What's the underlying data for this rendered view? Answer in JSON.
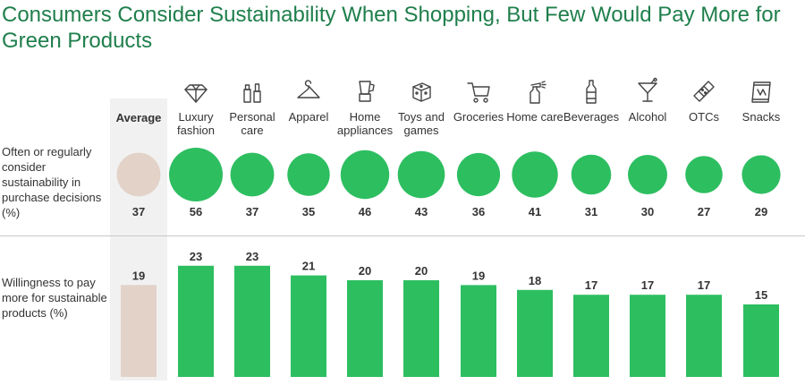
{
  "title": "Consumers Consider Sustainability When Shopping, But Few Would Pay More for Green Products",
  "rows": {
    "consider_label": "Often or regularly consider sustainability in purchase decisions (%)",
    "pay_label": "Willingness to pay more for sustainable products (%)"
  },
  "average_label": "Average",
  "colors": {
    "accent": "#2dbe60",
    "average": "#e2d2c7",
    "title": "#1f7f4c",
    "band": "#f1f1f1"
  },
  "categories": [
    {
      "label": "Luxury fashion",
      "icon": "diamond-icon"
    },
    {
      "label": "Personal care",
      "icon": "cosmetics-icon"
    },
    {
      "label": "Apparel",
      "icon": "hanger-icon"
    },
    {
      "label": "Home appliances",
      "icon": "blender-icon"
    },
    {
      "label": "Toys and games",
      "icon": "dice-icon"
    },
    {
      "label": "Groceries",
      "icon": "shopping-cart-icon"
    },
    {
      "label": "Home care",
      "icon": "spray-bottle-icon"
    },
    {
      "label": "Beverages",
      "icon": "bottle-icon"
    },
    {
      "label": "Alcohol",
      "icon": "cocktail-glass-icon"
    },
    {
      "label": "OTCs",
      "icon": "bandage-icon"
    },
    {
      "label": "Snacks",
      "icon": "snack-bag-icon"
    }
  ],
  "chart_data": [
    {
      "type": "bubble",
      "categories": [
        "Average",
        "Luxury fashion",
        "Personal care",
        "Apparel",
        "Home appliances",
        "Toys and games",
        "Groceries",
        "Home care",
        "Beverages",
        "Alcohol",
        "OTCs",
        "Snacks"
      ],
      "values": [
        37,
        56,
        37,
        35,
        46,
        43,
        36,
        41,
        31,
        30,
        27,
        29
      ]
    },
    {
      "type": "bar",
      "categories": [
        "Average",
        "Luxury fashion",
        "Personal care",
        "Apparel",
        "Home appliances",
        "Toys and games",
        "Groceries",
        "Home care",
        "Beverages",
        "Alcohol",
        "OTCs",
        "Snacks"
      ],
      "values": [
        19,
        23,
        23,
        21,
        20,
        20,
        19,
        18,
        17,
        17,
        17,
        15
      ]
    }
  ]
}
